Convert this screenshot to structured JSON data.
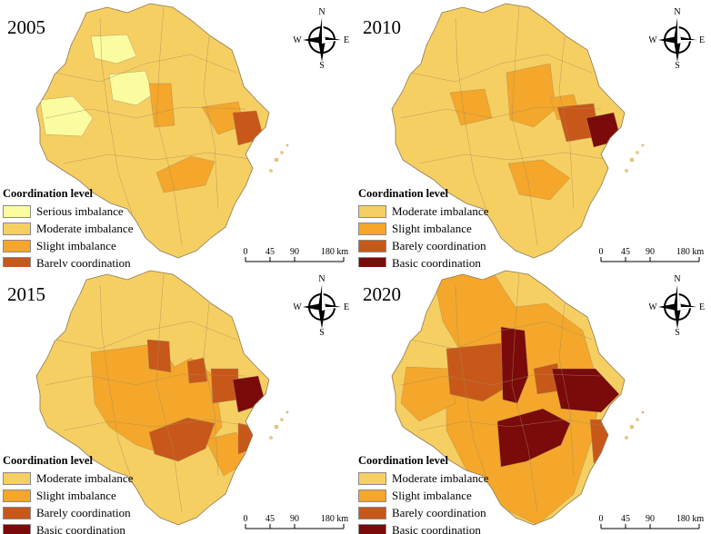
{
  "legend_title": "Coordination level",
  "colors": {
    "serious": "#fbfba0",
    "moderate": "#f6cf63",
    "slight": "#f4a72a",
    "barely": "#c8581a",
    "basic": "#7b0a0a"
  },
  "compass": {
    "n": "N",
    "s": "S",
    "e": "E",
    "w": "W"
  },
  "scale": {
    "labels": [
      "0",
      "45",
      "90",
      "180 km"
    ]
  },
  "panels": [
    {
      "year": "2005",
      "legend": [
        {
          "label": "Serious imbalance",
          "color": "#fbfba0"
        },
        {
          "label": "Moderate imbalance",
          "color": "#f6cf63"
        },
        {
          "label": "Slight imbalance",
          "color": "#f4a72a"
        },
        {
          "label": "Barely coordination",
          "color": "#c8581a"
        }
      ]
    },
    {
      "year": "2010",
      "legend": [
        {
          "label": "Moderate imbalance",
          "color": "#f6cf63"
        },
        {
          "label": "Slight imbalance",
          "color": "#f4a72a"
        },
        {
          "label": "Barely coordination",
          "color": "#c8581a"
        },
        {
          "label": "Basic coordination",
          "color": "#7b0a0a"
        }
      ]
    },
    {
      "year": "2015",
      "legend": [
        {
          "label": "Moderate imbalance",
          "color": "#f6cf63"
        },
        {
          "label": "Slight imbalance",
          "color": "#f4a72a"
        },
        {
          "label": "Barely coordination",
          "color": "#c8581a"
        },
        {
          "label": "Basic coordination",
          "color": "#7b0a0a"
        }
      ]
    },
    {
      "year": "2020",
      "legend": [
        {
          "label": "Moderate imbalance",
          "color": "#f6cf63"
        },
        {
          "label": "Slight imbalance",
          "color": "#f4a72a"
        },
        {
          "label": "Barely coordination",
          "color": "#c8581a"
        },
        {
          "label": "Basic coordination",
          "color": "#7b0a0a"
        }
      ]
    }
  ]
}
